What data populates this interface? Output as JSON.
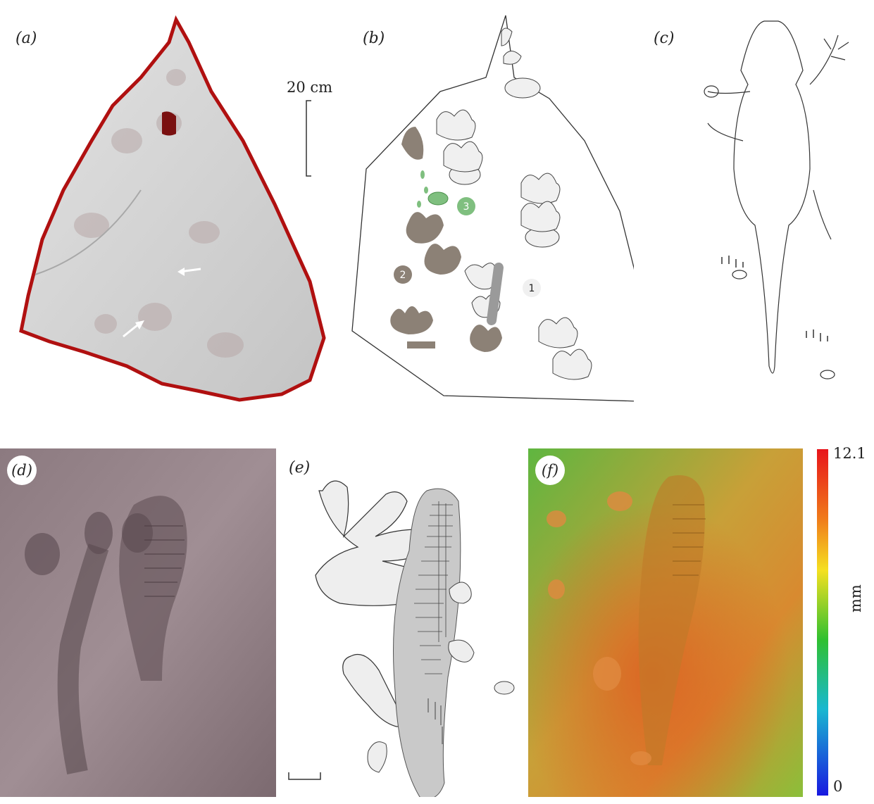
{
  "panels": {
    "a": {
      "label": "(a)",
      "scale_label": "20 cm"
    },
    "b": {
      "label": "(b)",
      "markers": [
        "1",
        "2",
        "3"
      ]
    },
    "c": {
      "label": "(c)"
    },
    "d": {
      "label": "(d)"
    },
    "e": {
      "label": "(e)"
    },
    "f": {
      "label": "(f)",
      "colorbar": {
        "max": "12.1",
        "min": "0",
        "unit": "mm"
      }
    }
  },
  "colors": {
    "track_light": "#f0f0f0",
    "track_dark": "#8c8176",
    "track_green": "#7fbf7f",
    "rock": "#cfcfcf",
    "rock_edge": "#c21818",
    "body_grey": "#bdbdbd"
  }
}
